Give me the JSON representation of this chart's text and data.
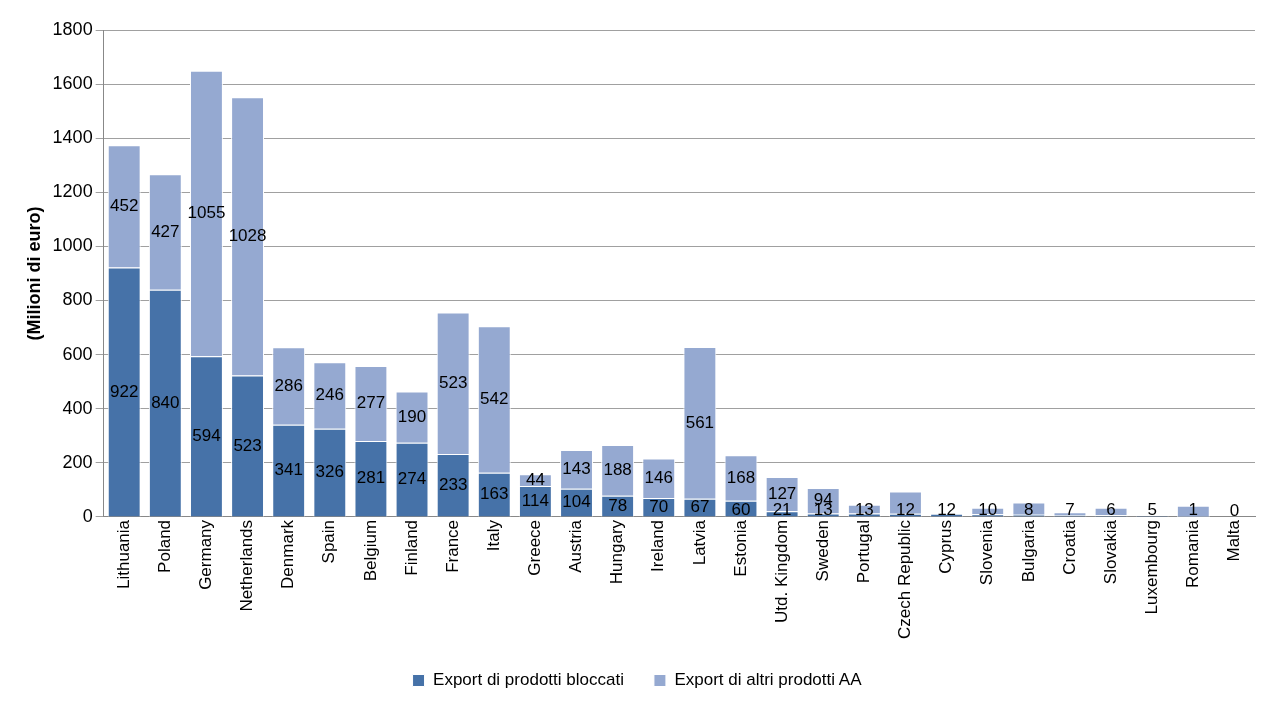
{
  "chart_data": {
    "type": "bar",
    "stacked": true,
    "ylabel": "(Milioni di euro)",
    "categories": [
      "Lithuania",
      "Poland",
      "Germany",
      "Netherlands",
      "Denmark",
      "Spain",
      "Belgium",
      "Finland",
      "France",
      "Italy",
      "Greece",
      "Austria",
      "Hungary",
      "Ireland",
      "Latvia",
      "Estonia",
      "Utd. Kingdom",
      "Sweden",
      "Portugal",
      "Czech Republic",
      "Cyprus",
      "Slovenia",
      "Bulgaria",
      "Croatia",
      "Slovakia",
      "Luxembourg",
      "Romania",
      "Malta"
    ],
    "series": [
      {
        "name": "Export di prodotti bloccati",
        "color": "#4672a8",
        "values": [
          922,
          840,
          594,
          523,
          341,
          326,
          281,
          274,
          233,
          163,
          114,
          104,
          78,
          70,
          67,
          60,
          21,
          13,
          13,
          12,
          12,
          10,
          8,
          7,
          6,
          5,
          1,
          0
        ],
        "value_labels": [
          "922",
          "840",
          "594",
          "523",
          "341",
          "326",
          "281",
          "274",
          "233",
          "163",
          "114",
          "104",
          "78",
          "70",
          "67",
          "60",
          "21",
          "13",
          "13",
          "12",
          "12",
          "10",
          "8",
          "7",
          "6",
          "5",
          "1",
          "0"
        ]
      },
      {
        "name": "Export di altri prodotti AA",
        "color": "#95a9d1",
        "values": [
          452,
          427,
          1055,
          1028,
          286,
          246,
          277,
          190,
          523,
          542,
          44,
          143,
          188,
          146,
          561,
          168,
          127,
          94,
          32,
          82,
          0,
          24,
          45,
          10,
          28,
          null,
          40,
          0
        ],
        "value_labels": [
          "452",
          "427",
          "1055",
          "1028",
          "286",
          "246",
          "277",
          "190",
          "523",
          "542",
          "44",
          "143",
          "188",
          "146",
          "561",
          "168",
          "127",
          "94",
          null,
          null,
          null,
          null,
          null,
          null,
          null,
          null,
          null,
          null
        ]
      }
    ],
    "ylim": [
      0,
      1800
    ],
    "yticks": [
      0,
      200,
      400,
      600,
      800,
      1000,
      1200,
      1400,
      1600,
      1800
    ],
    "grid": "y",
    "legend": "bottom"
  }
}
